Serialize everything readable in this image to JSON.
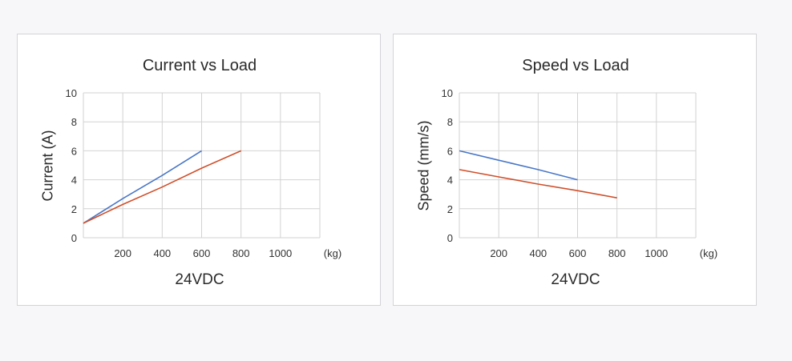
{
  "colors": {
    "series1": "#4a78c8",
    "series2": "#d0502c",
    "grid": "#d2d2d2",
    "text": "#333333"
  },
  "chart_data": [
    {
      "type": "line",
      "title": "Current vs Load",
      "ylabel": "Current (A)",
      "xunit": "(kg)",
      "footer": "24VDC",
      "xlim": [
        0,
        1200
      ],
      "ylim": [
        0,
        10
      ],
      "xticks": [
        200,
        400,
        600,
        800,
        1000
      ],
      "yticks": [
        0,
        2,
        4,
        6,
        8,
        10
      ],
      "grid": true,
      "series": [
        {
          "color": "series1",
          "x": [
            0,
            200,
            400,
            600
          ],
          "y": [
            1.0,
            2.7,
            4.3,
            6.0
          ]
        },
        {
          "color": "series2",
          "x": [
            0,
            200,
            400,
            600,
            800
          ],
          "y": [
            1.0,
            2.3,
            3.5,
            4.8,
            6.0
          ]
        }
      ]
    },
    {
      "type": "line",
      "title": "Speed vs Load",
      "ylabel": "Speed (mm/s)",
      "xunit": "(kg)",
      "footer": "24VDC",
      "xlim": [
        0,
        1200
      ],
      "ylim": [
        0,
        10
      ],
      "xticks": [
        200,
        400,
        600,
        800,
        1000
      ],
      "yticks": [
        0,
        2,
        4,
        6,
        8,
        10
      ],
      "grid": true,
      "series": [
        {
          "color": "series1",
          "x": [
            0,
            200,
            400,
            600
          ],
          "y": [
            6.0,
            5.35,
            4.7,
            4.0
          ]
        },
        {
          "color": "series2",
          "x": [
            0,
            200,
            400,
            600,
            800
          ],
          "y": [
            4.7,
            4.2,
            3.7,
            3.25,
            2.75
          ]
        }
      ]
    }
  ]
}
